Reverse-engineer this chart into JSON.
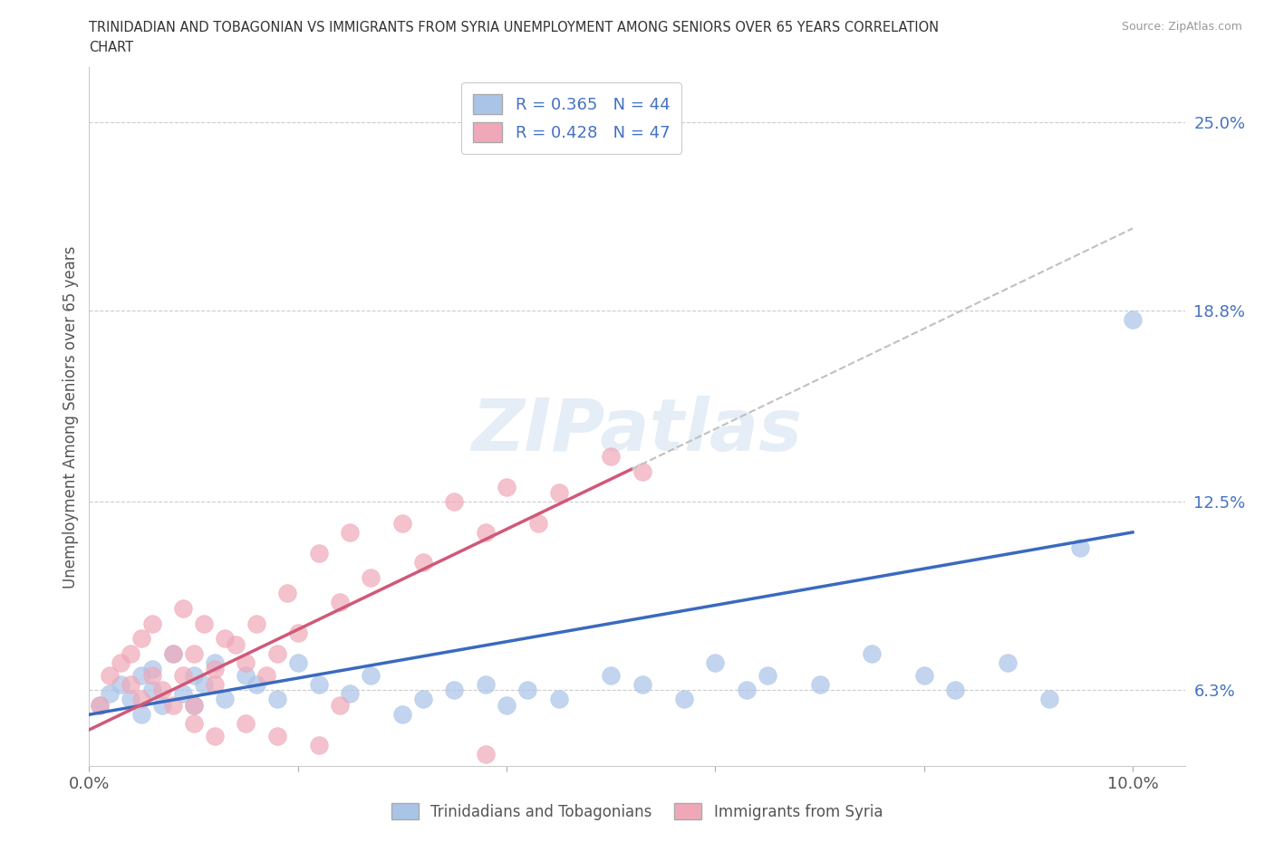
{
  "title_line1": "TRINIDADIAN AND TOBAGONIAN VS IMMIGRANTS FROM SYRIA UNEMPLOYMENT AMONG SENIORS OVER 65 YEARS CORRELATION",
  "title_line2": "CHART",
  "source": "Source: ZipAtlas.com",
  "ylabel": "Unemployment Among Seniors over 65 years",
  "xlim": [
    0.0,
    0.105
  ],
  "ylim": [
    0.038,
    0.268
  ],
  "xticks": [
    0.0,
    0.02,
    0.04,
    0.06,
    0.08,
    0.1
  ],
  "xticklabels": [
    "0.0%",
    "",
    "",
    "",
    "",
    "10.0%"
  ],
  "ytick_vals": [
    0.063,
    0.125,
    0.188,
    0.25
  ],
  "ytick_labels": [
    "6.3%",
    "12.5%",
    "18.8%",
    "25.0%"
  ],
  "blue_color": "#aac4e8",
  "pink_color": "#f0a8b8",
  "blue_line_color": "#3a6abf",
  "pink_line_color": "#d05878",
  "gray_dash_color": "#c0c0c0",
  "legend_label1": "R = 0.365   N = 44",
  "legend_label2": "R = 0.428   N = 47",
  "watermark": "ZIPatlas",
  "blue_x": [
    0.001,
    0.002,
    0.003,
    0.004,
    0.005,
    0.005,
    0.006,
    0.006,
    0.007,
    0.008,
    0.009,
    0.01,
    0.01,
    0.011,
    0.012,
    0.013,
    0.015,
    0.016,
    0.018,
    0.02,
    0.022,
    0.025,
    0.027,
    0.03,
    0.032,
    0.035,
    0.038,
    0.04,
    0.042,
    0.045,
    0.05,
    0.053,
    0.057,
    0.06,
    0.063,
    0.065,
    0.07,
    0.075,
    0.08,
    0.083,
    0.088,
    0.092,
    0.095,
    0.1
  ],
  "blue_y": [
    0.058,
    0.062,
    0.065,
    0.06,
    0.068,
    0.055,
    0.063,
    0.07,
    0.058,
    0.075,
    0.062,
    0.068,
    0.058,
    0.065,
    0.072,
    0.06,
    0.068,
    0.065,
    0.06,
    0.072,
    0.065,
    0.062,
    0.068,
    0.055,
    0.06,
    0.063,
    0.065,
    0.058,
    0.063,
    0.06,
    0.068,
    0.065,
    0.06,
    0.072,
    0.063,
    0.068,
    0.065,
    0.075,
    0.068,
    0.063,
    0.072,
    0.06,
    0.11,
    0.185
  ],
  "pink_x": [
    0.001,
    0.002,
    0.003,
    0.004,
    0.004,
    0.005,
    0.005,
    0.006,
    0.006,
    0.007,
    0.008,
    0.008,
    0.009,
    0.009,
    0.01,
    0.01,
    0.011,
    0.012,
    0.012,
    0.013,
    0.014,
    0.015,
    0.016,
    0.017,
    0.018,
    0.019,
    0.02,
    0.022,
    0.024,
    0.025,
    0.027,
    0.03,
    0.032,
    0.035,
    0.038,
    0.04,
    0.043,
    0.045,
    0.05,
    0.053,
    0.024,
    0.018,
    0.015,
    0.022,
    0.012,
    0.01,
    0.038
  ],
  "pink_y": [
    0.058,
    0.068,
    0.072,
    0.065,
    0.075,
    0.06,
    0.08,
    0.068,
    0.085,
    0.063,
    0.075,
    0.058,
    0.09,
    0.068,
    0.075,
    0.058,
    0.085,
    0.07,
    0.065,
    0.08,
    0.078,
    0.072,
    0.085,
    0.068,
    0.075,
    0.095,
    0.082,
    0.108,
    0.092,
    0.115,
    0.1,
    0.118,
    0.105,
    0.125,
    0.115,
    0.13,
    0.118,
    0.128,
    0.14,
    0.135,
    0.058,
    0.048,
    0.052,
    0.045,
    0.048,
    0.052,
    0.042
  ]
}
